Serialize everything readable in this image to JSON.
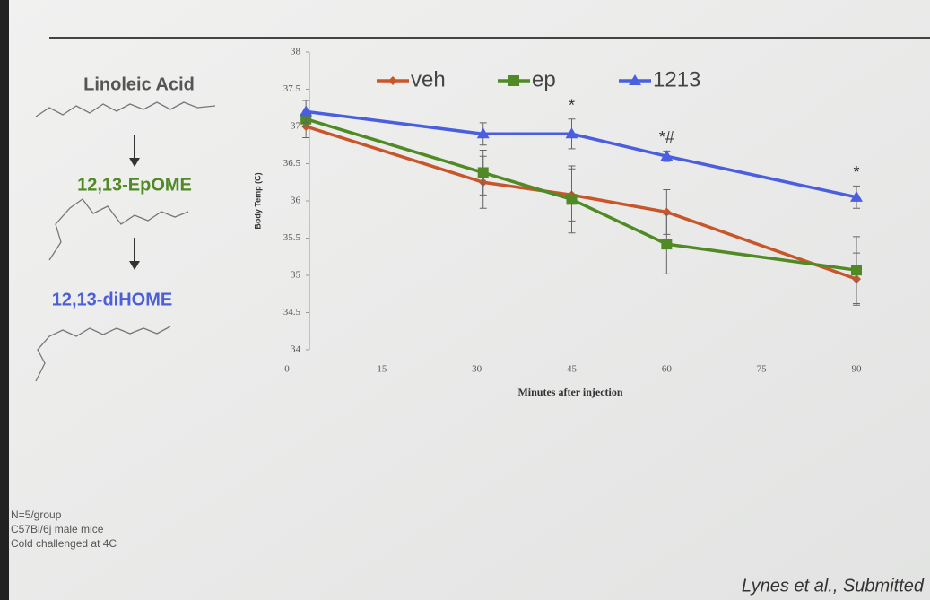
{
  "chart_data": {
    "type": "line",
    "x": [
      3,
      31,
      45,
      60,
      90
    ],
    "series": [
      {
        "name": "veh",
        "color": "#c9562b",
        "marker": "diamond",
        "values": [
          37.0,
          36.25,
          36.08,
          35.85,
          34.95
        ],
        "errors": [
          0.15,
          0.35,
          0.35,
          0.3,
          0.35
        ]
      },
      {
        "name": "ep",
        "color": "#4f8a25",
        "marker": "square",
        "values": [
          37.1,
          36.38,
          36.02,
          35.42,
          35.07
        ],
        "errors": [
          0.1,
          0.3,
          0.45,
          0.4,
          0.45
        ]
      },
      {
        "name": "1213",
        "color": "#4a5ee0",
        "marker": "triangle",
        "values": [
          37.2,
          36.9,
          36.9,
          36.6,
          36.05
        ],
        "errors": [
          0.15,
          0.15,
          0.2,
          0.07,
          0.15
        ]
      }
    ],
    "xlim": [
      0,
      90
    ],
    "xticks": [
      0,
      15,
      30,
      45,
      60,
      75,
      90
    ],
    "ylim": [
      34,
      38
    ],
    "yticks": [
      34,
      34.5,
      35,
      35.5,
      36,
      36.5,
      37,
      37.5,
      38
    ],
    "x_label": "Minutes after injection",
    "y_label": "Body Temp (C)",
    "annotations": [
      {
        "text": "*",
        "x": 45
      },
      {
        "text": "*#",
        "x": 60
      },
      {
        "text": "*",
        "x": 90
      }
    ]
  },
  "slide": {
    "pathway": [
      "Linoleic Acid",
      "12,13-EpOME",
      "12,13-diHOME"
    ],
    "notes": [
      "N=5/group",
      "C57Bl/6j male mice",
      "Cold challenged at 4C"
    ],
    "citation": "Lynes et al., Submitted"
  }
}
